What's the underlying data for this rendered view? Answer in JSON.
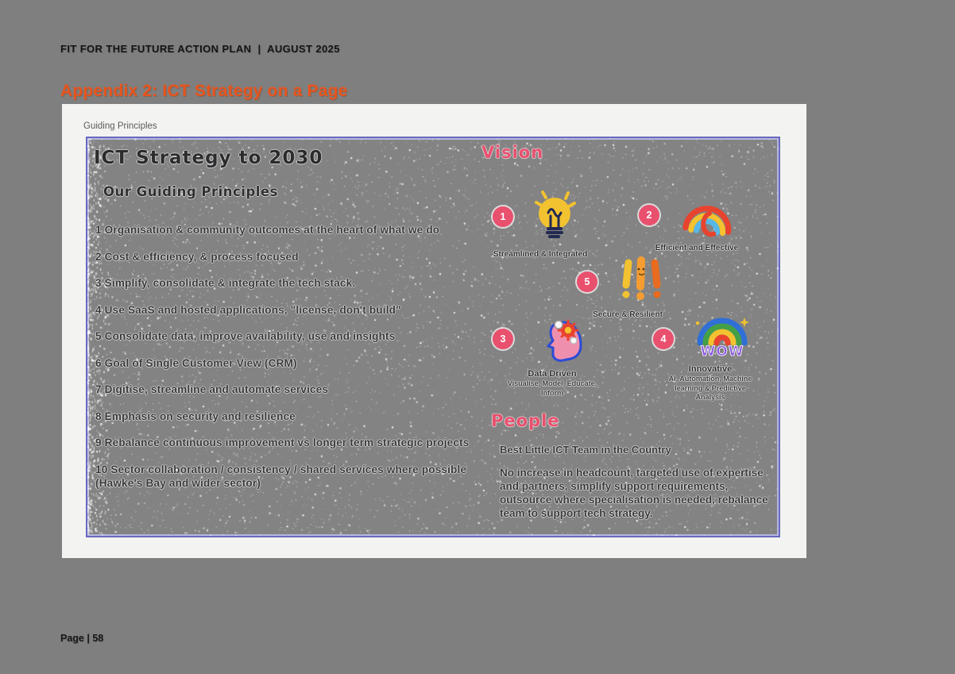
{
  "page": {
    "header": "FIT FOR THE FUTURE ACTION PLAN  |  AUGUST 2025",
    "title": "Appendix 2: ICT Strategy on a Page",
    "footer": "Page | 58"
  },
  "panel": {
    "label": "Guiding Principles"
  },
  "slide": {
    "title": "ICT Strategy to 2030",
    "subtitle": "Our Guiding Principles",
    "principles": [
      "1 Organisation & community outcomes at the heart of what we do",
      "2 Cost & efficiency, & process focused",
      "3 Simplify, consolidate & integrate the tech stack.",
      "4 Use SaaS and hosted applications, \"license, don't build\"",
      "5 Consolidate data, improve availability, use and insights",
      "6 Goal of Single Customer View (CRM)",
      "7 Digitise, streamline and automate services",
      "8 Emphasis on security and resilience",
      "9 Rebalance continuous improvement vs longer term strategic projects",
      "10 Sector collaboration / consistency / shared services where possible (Hawke's Bay and wider sector)"
    ],
    "vision": {
      "heading": "Vision",
      "items": [
        {
          "number": "1",
          "icon": "lightbulb-icon",
          "label": "Streamlined & Integrated",
          "sublabel": ""
        },
        {
          "number": "2",
          "icon": "rainbow-doodle-icon",
          "label": "Efficient and Effective",
          "sublabel": ""
        },
        {
          "number": "5",
          "icon": "exclamation-marks-icon",
          "label": "Secure & Resilient",
          "sublabel": ""
        },
        {
          "number": "3",
          "icon": "head-gears-icon",
          "label": "Data Driven",
          "sublabel": "Visualise, Model, Educate, Inform"
        },
        {
          "number": "4",
          "icon": "wow-rainbow-icon",
          "label": "Innovative",
          "sublabel": "AI, Automation, Machine learning & Predictive Analysis"
        }
      ]
    },
    "people": {
      "heading": "People",
      "tagline": "Best Little ICT Team in the Country",
      "body": "No increase in headcount, targeted use of expertise and partners, simplify support requirements, outsource where specialisation is needed, rebalance team to support tech strategy."
    }
  },
  "colors": {
    "page_bg": "#7f7f7f",
    "panel_bg": "#f3f3f1",
    "slide_bg": "#838383",
    "slide_border": "#6a6ac0",
    "accent_orange": "#e8541e",
    "accent_pink": "#e9506e",
    "ink": "#38383a"
  }
}
